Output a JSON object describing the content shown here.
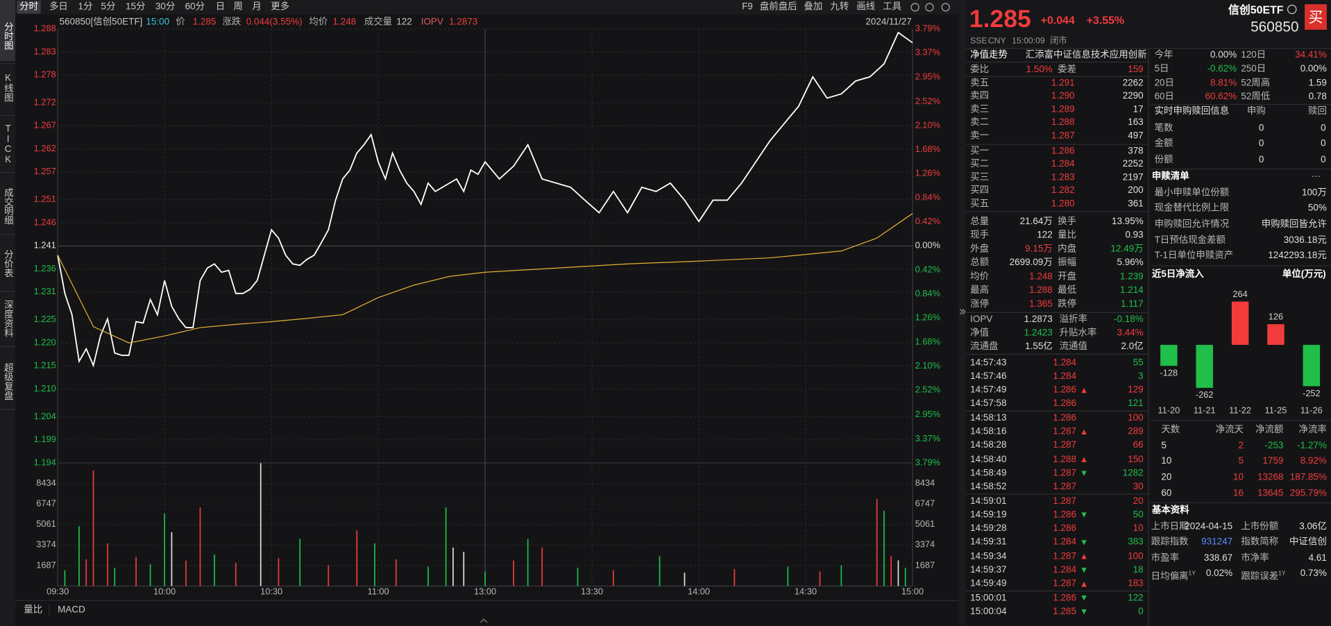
{
  "left_tabs": [
    "分时图",
    "K线图",
    "TICK",
    "成交明细",
    "分价表",
    "深度资料",
    "超级复盘"
  ],
  "toolbar": {
    "periods": [
      "分时",
      "多日",
      "1分",
      "5分",
      "15分",
      "30分",
      "60分",
      "日",
      "周",
      "月",
      "更多"
    ],
    "tools": [
      "F9",
      "盘前盘后",
      "叠加",
      "九转",
      "画线",
      "工具"
    ]
  },
  "info": {
    "code": "560850[信创50ETF]",
    "time": "15:00",
    "price_label": "价",
    "price": "1.285",
    "change_label": "涨跌",
    "change": "0.044(3.55%)",
    "avg_label": "均价",
    "avg": "1.248",
    "vol_label": "成交量",
    "vol": "122",
    "iopv_label": "IOPV",
    "iopv": "1.2873",
    "date": "2024/11/27"
  },
  "bottom_tabs": [
    "量比",
    "MACD"
  ],
  "chart_data": [
    {
      "type": "line",
      "grid": true,
      "xlim": [
        0,
        240
      ],
      "ylim": [
        1.194,
        1.288
      ],
      "y2lim": [
        -3.79,
        3.79
      ],
      "xticks": [
        {
          "value": 0,
          "label": "09:30"
        },
        {
          "value": 30,
          "label": "10:00"
        },
        {
          "value": 60,
          "label": "10:30"
        },
        {
          "value": 90,
          "label": "11:00"
        },
        {
          "value": 120,
          "label": "13:00"
        },
        {
          "value": 150,
          "label": "13:30"
        },
        {
          "value": 180,
          "label": "14:00"
        },
        {
          "value": 210,
          "label": "14:30"
        },
        {
          "value": 240,
          "label": "15:00"
        }
      ],
      "yticks": [
        1.288,
        1.283,
        1.278,
        1.272,
        1.267,
        1.262,
        1.257,
        1.251,
        1.246,
        1.241,
        1.236,
        1.231,
        1.225,
        {
          "value": 1.22,
          "label": "1.220"
        },
        1.215,
        {
          "value": 1.21,
          "label": "1.210"
        },
        1.204,
        1.199,
        1.194
      ],
      "y2ticks": [
        {
          "value": 3.79,
          "label": "3.79%"
        },
        {
          "value": 3.37,
          "label": "3.37%"
        },
        {
          "value": 2.95,
          "label": "2.95%"
        },
        {
          "value": 2.52,
          "label": "2.52%"
        },
        {
          "value": 2.1,
          "label": "2.10%"
        },
        {
          "value": 1.68,
          "label": "1.68%"
        },
        {
          "value": 1.26,
          "label": "1.26%"
        },
        {
          "value": 0.84,
          "label": "0.84%"
        },
        {
          "value": 0.42,
          "label": "0.42%"
        },
        {
          "value": 0,
          "label": "0.00%"
        },
        {
          "value": -0.42,
          "label": "0.42%"
        },
        {
          "value": -0.84,
          "label": "0.84%"
        },
        {
          "value": -1.26,
          "label": "1.26%"
        },
        {
          "value": -1.68,
          "label": "1.68%"
        },
        {
          "value": -2.1,
          "label": "2.10%"
        },
        {
          "value": -2.52,
          "label": "2.52%"
        },
        {
          "value": -2.95,
          "label": "2.95%"
        },
        {
          "value": -3.37,
          "label": "3.37%"
        },
        {
          "value": -3.79,
          "label": "3.79%"
        }
      ],
      "series": [
        {
          "color": "#ffffff",
          "x": [
            0,
            2,
            4,
            6,
            8,
            10,
            12,
            14,
            16,
            18,
            20,
            22,
            24,
            26,
            28,
            30,
            32,
            34,
            36,
            38,
            40,
            42,
            44,
            46,
            48,
            50,
            52,
            54,
            56,
            58,
            60,
            62,
            64,
            66,
            68,
            70,
            72,
            74,
            76,
            78,
            80,
            82,
            84,
            86,
            88,
            90,
            92,
            94,
            96,
            98,
            100,
            102,
            104,
            106,
            108,
            110,
            112,
            114,
            116,
            118,
            120,
            124,
            128,
            132,
            136,
            140,
            144,
            148,
            152,
            156,
            160,
            164,
            168,
            172,
            176,
            180,
            184,
            188,
            192,
            196,
            200,
            204,
            208,
            212,
            216,
            220,
            224,
            228,
            232,
            236,
            240
          ],
          "values": [
            1.239,
            1.2307,
            1.2261,
            1.216,
            1.2187,
            1.2151,
            1.2215,
            1.2252,
            1.2178,
            1.2173,
            1.2173,
            1.2246,
            1.2243,
            1.2294,
            1.2261,
            1.2335,
            1.2279,
            1.2252,
            1.2233,
            1.2233,
            1.2335,
            1.2362,
            1.2371,
            1.2353,
            1.2357,
            1.2307,
            1.2307,
            1.2316,
            1.2335,
            1.239,
            1.2445,
            1.2427,
            1.239,
            1.2371,
            1.2368,
            1.2381,
            1.239,
            1.2417,
            1.2445,
            1.2509,
            1.2555,
            1.2574,
            1.2611,
            1.2629,
            1.2651,
            1.2592,
            1.2555,
            1.2611,
            1.2574,
            1.2546,
            1.2528,
            1.25,
            1.2546,
            1.2528,
            1.2537,
            1.2546,
            1.2555,
            1.2528,
            1.2574,
            1.2565,
            1.2592,
            1.2555,
            1.2583,
            1.2629,
            1.2555,
            1.2546,
            1.2537,
            1.2509,
            1.2482,
            1.2528,
            1.2482,
            1.2537,
            1.2528,
            1.2546,
            1.2509,
            1.2463,
            1.2509,
            1.2509,
            1.2546,
            1.2592,
            1.2638,
            1.2675,
            1.2712,
            1.2776,
            1.273,
            1.2739,
            1.2767,
            1.2776,
            1.2804,
            1.2872,
            1.285
          ]
        },
        {
          "color": "#e8b234",
          "x": [
            0,
            10,
            20,
            30,
            40,
            50,
            60,
            70,
            80,
            90,
            100,
            110,
            120,
            140,
            160,
            180,
            200,
            220,
            230,
            240
          ],
          "values": [
            1.239,
            1.2235,
            1.22,
            1.2215,
            1.2233,
            1.224,
            1.2246,
            1.2253,
            1.2261,
            1.2298,
            1.2325,
            1.2344,
            1.2353,
            1.2362,
            1.2371,
            1.2377,
            1.2384,
            1.2399,
            1.2427,
            1.248
          ]
        }
      ]
    },
    {
      "type": "bar",
      "xlim": [
        0,
        240
      ],
      "ylim": [
        0,
        10121
      ],
      "yticks": [
        1687,
        3374,
        5061,
        6747,
        8434
      ],
      "x": [
        2,
        6,
        8,
        10,
        14,
        16,
        22,
        26,
        30,
        32,
        36,
        40,
        44,
        50,
        57,
        62,
        68,
        76,
        84,
        89,
        95,
        104,
        109,
        111,
        114,
        120,
        128,
        132,
        136,
        146,
        156,
        169,
        176,
        190,
        205,
        214,
        220,
        230,
        232,
        234,
        236,
        238
      ],
      "values": [
        1300,
        4920,
        2200,
        9490,
        3515,
        1500,
        2400,
        1800,
        5975,
        4430,
        2100,
        6470,
        2600,
        1900,
        10100,
        2300,
        3870,
        1700,
        4570,
        3515,
        2200,
        1600,
        6470,
        3160,
        2810,
        1200,
        2100,
        3870,
        3160,
        1500,
        1300,
        2460,
        1100,
        1400,
        1600,
        1200,
        1700,
        7170,
        6190,
        2460,
        2110,
        1500
      ],
      "colors": [
        "#1fbf4a",
        "#1fbf4a",
        "#f23c3c",
        "#f23c3c",
        "#f23c3c",
        "#1fbf4a",
        "#f23c3c",
        "#1fbf4a",
        "#1fbf4a",
        "#e0e0e0",
        "#f23c3c",
        "#f23c3c",
        "#1fbf4a",
        "#f23c3c",
        "#e0e0e0",
        "#f23c3c",
        "#1fbf4a",
        "#f23c3c",
        "#f23c3c",
        "#1fbf4a",
        "#f23c3c",
        "#1fbf4a",
        "#1fbf4a",
        "#e0e0e0",
        "#e0e0e0",
        "#1fbf4a",
        "#f23c3c",
        "#1fbf4a",
        "#f23c3c",
        "#1fbf4a",
        "#f23c3c",
        "#1fbf4a",
        "#e0e0e0",
        "#f23c3c",
        "#1fbf4a",
        "#f23c3c",
        "#1fbf4a",
        "#f23c3c",
        "#1fbf4a",
        "#f23c3c",
        "#e0e0e0",
        "#1fbf4a"
      ]
    },
    {
      "type": "bar",
      "title": "近5日净流入",
      "unit": "单位(万元)",
      "categories": [
        "11-20",
        "11-21",
        "11-22",
        "11-25",
        "11-26"
      ],
      "values": [
        -128,
        -262,
        264,
        126,
        -252
      ],
      "ylim": [
        -350,
        350
      ],
      "positive_color": "#f23c3c",
      "negative_color": "#1fbf4a"
    }
  ],
  "quote": {
    "price": "1.285",
    "change": "+0.044",
    "change_pct": "+3.55%",
    "name": "信创50ETF",
    "code": "560850",
    "buy": "买",
    "meta": [
      "SSE",
      "CNY",
      "15:00:09",
      "闭市"
    ],
    "nav_tab": "净值走势",
    "fund_name": "汇添富中证信息技术应用创新"
  },
  "ratio": {
    "cells": [
      "委比",
      "1.50%",
      "委差",
      "159"
    ],
    "colors": [
      "#f23c3c",
      "#f23c3c"
    ]
  },
  "order_book": {
    "price_color": "#f23c3c",
    "volume_color": "#e0e0e0",
    "asks": [
      [
        "卖五",
        "1.291",
        "2262"
      ],
      [
        "卖四",
        "1.290",
        "2290"
      ],
      [
        "卖三",
        "1.289",
        "17"
      ],
      [
        "卖二",
        "1.288",
        "163"
      ],
      [
        "卖一",
        "1.287",
        "497"
      ]
    ],
    "bids": [
      [
        "买一",
        "1.286",
        "378"
      ],
      [
        "买二",
        "1.284",
        "2252"
      ],
      [
        "买三",
        "1.283",
        "2197"
      ],
      [
        "买四",
        "1.282",
        "200"
      ],
      [
        "买五",
        "1.280",
        "361"
      ]
    ]
  },
  "stats": {
    "rows": [
      [
        "总量",
        "21.64万",
        "换手",
        "13.95%"
      ],
      [
        "现手",
        "122",
        "量比",
        "0.93"
      ],
      [
        "外盘",
        "9.15万",
        "内盘",
        "12.49万"
      ],
      [
        "总额",
        "2699.09万",
        "振幅",
        "5.96%"
      ],
      [
        "均价",
        "1.248",
        "开盘",
        "1.239"
      ],
      [
        "最高",
        "1.288",
        "最低",
        "1.214"
      ],
      [
        "涨停",
        "1.365",
        "跌停",
        "1.117"
      ]
    ],
    "colors": [
      [
        "#e0e0e0",
        "#e0e0e0"
      ],
      [
        "#e0e0e0",
        "#e0e0e0"
      ],
      [
        "#f23c3c",
        "#1fbf4a"
      ],
      [
        "#e0e0e0",
        "#e0e0e0"
      ],
      [
        "#f23c3c",
        "#1fbf4a"
      ],
      [
        "#f23c3c",
        "#1fbf4a"
      ],
      [
        "#f23c3c",
        "#1fbf4a"
      ]
    ]
  },
  "stats2": {
    "rows": [
      [
        "IOPV",
        "1.2873",
        "溢折率",
        "-0.18%"
      ],
      [
        "净值",
        "1.2423",
        "升贴水率",
        "3.44%"
      ],
      [
        "流通盘",
        "1.55亿",
        "流通值",
        "2.0亿"
      ]
    ],
    "colors": [
      [
        "#e0e0e0",
        "#1fbf4a"
      ],
      [
        "#1fbf4a",
        "#f23c3c"
      ],
      [
        "#e0e0e0",
        "#e0e0e0"
      ]
    ]
  },
  "trades": {
    "price_color": "#f23c3c",
    "rows": [
      {
        "time": "14:57:43",
        "price": "1.284",
        "volume": "55",
        "color": "#1fbf4a"
      },
      {
        "time": "14:57:46",
        "price": "1.284",
        "volume": "3",
        "color": "#1fbf4a"
      },
      {
        "time": "14:57:49",
        "price": "1.286",
        "volume": "129",
        "color": "#f23c3c",
        "arrow": "up"
      },
      {
        "time": "14:57:58",
        "price": "1.286",
        "volume": "121",
        "color": "#1fbf4a"
      },
      {
        "time": "14:58:13",
        "price": "1.286",
        "volume": "100",
        "color": "#f23c3c"
      },
      {
        "time": "14:58:16",
        "price": "1.287",
        "volume": "289",
        "color": "#f23c3c",
        "arrow": "up"
      },
      {
        "time": "14:58:28",
        "price": "1.287",
        "volume": "66",
        "color": "#f23c3c"
      },
      {
        "time": "14:58:40",
        "price": "1.288",
        "volume": "150",
        "color": "#f23c3c",
        "arrow": "up"
      },
      {
        "time": "14:58:49",
        "price": "1.287",
        "volume": "1282",
        "color": "#1fbf4a",
        "arrow": "down"
      },
      {
        "time": "14:58:52",
        "price": "1.287",
        "volume": "30",
        "color": "#f23c3c"
      },
      {
        "time": "14:59:01",
        "price": "1.287",
        "volume": "20",
        "color": "#f23c3c"
      },
      {
        "time": "14:59:19",
        "price": "1.286",
        "volume": "50",
        "color": "#1fbf4a",
        "arrow": "down"
      },
      {
        "time": "14:59:28",
        "price": "1.286",
        "volume": "10",
        "color": "#f23c3c"
      },
      {
        "time": "14:59:31",
        "price": "1.284",
        "volume": "383",
        "color": "#1fbf4a",
        "arrow": "down"
      },
      {
        "time": "14:59:34",
        "price": "1.287",
        "volume": "100",
        "color": "#f23c3c",
        "arrow": "up"
      },
      {
        "time": "14:59:37",
        "price": "1.284",
        "volume": "18",
        "color": "#1fbf4a",
        "arrow": "down"
      },
      {
        "time": "14:59:49",
        "price": "1.287",
        "volume": "183",
        "color": "#f23c3c",
        "arrow": "up"
      },
      {
        "time": "15:00:01",
        "price": "1.286",
        "volume": "122",
        "color": "#1fbf4a",
        "arrow": "down"
      },
      {
        "time": "15:00:04",
        "price": "1.285",
        "volume": "0",
        "color": "#1fbf4a",
        "arrow": "down"
      }
    ]
  },
  "periods": {
    "rows": [
      [
        "今年",
        "0.00%",
        "120日",
        "34.41%"
      ],
      [
        "5日",
        "-0.62%",
        "250日",
        "0.00%"
      ],
      [
        "20日",
        "8.81%",
        "52周高",
        "1.59"
      ],
      [
        "60日",
        "60.62%",
        "52周低",
        "0.78"
      ]
    ],
    "colors": [
      [
        "#e0e0e0",
        "#f23c3c"
      ],
      [
        "#1fbf4a",
        "#e0e0e0"
      ],
      [
        "#f23c3c",
        "#e0e0e0"
      ],
      [
        "#f23c3c",
        "#e0e0e0"
      ]
    ]
  },
  "creation": {
    "title": "实时申购赎回信息",
    "headers": [
      "申购",
      "赎回"
    ],
    "rows": [
      [
        "笔数",
        "0",
        "0"
      ],
      [
        "金额",
        "0",
        "0"
      ],
      [
        "份额",
        "0",
        "0"
      ]
    ]
  },
  "list": {
    "title": "申赎清单",
    "more": "···",
    "rows": [
      [
        "最小申赎单位份额",
        "100万"
      ],
      [
        "现金替代比例上限",
        "50%"
      ],
      [
        "申购赎回允许情况",
        "申购赎回皆允许"
      ],
      [
        "T日预估现金差额",
        "3036.18元"
      ],
      [
        "T-1日单位申赎资产",
        "1242293.18元"
      ]
    ]
  },
  "flow": {
    "headers": [
      "天数",
      "净流天",
      "净流额",
      "净流率"
    ],
    "rows": [
      [
        "5",
        "2",
        "-253",
        "-1.27%"
      ],
      [
        "10",
        "5",
        "1759",
        "8.92%"
      ],
      [
        "20",
        "10",
        "13268",
        "187.85%"
      ],
      [
        "60",
        "16",
        "13645",
        "295.79%"
      ]
    ],
    "colors": [
      [
        "#f23c3c",
        "#1fbf4a",
        "#1fbf4a"
      ],
      [
        "#f23c3c",
        "#f23c3c",
        "#f23c3c"
      ],
      [
        "#f23c3c",
        "#f23c3c",
        "#f23c3c"
      ],
      [
        "#f23c3c",
        "#f23c3c",
        "#f23c3c"
      ]
    ]
  },
  "basic": {
    "title": "基本资料",
    "rows": [
      [
        {
          "text": "上市日期"
        },
        {
          "text": "2024-04-15"
        },
        {
          "text": "上市份额"
        },
        {
          "text": "3.06亿"
        }
      ],
      [
        {
          "text": "跟踪指数"
        },
        {
          "text": "931247"
        },
        {
          "text": "指数简称"
        },
        {
          "text": "中证信创"
        }
      ],
      [
        {
          "text": "市盈率"
        },
        {
          "text": "338.67"
        },
        {
          "text": "市净率"
        },
        {
          "text": "4.61"
        }
      ],
      [
        {
          "text": "日均偏离",
          "sup": "1Y"
        },
        {
          "text": "0.02%"
        },
        {
          "text": "跟踪误差",
          "sup": "1Y"
        },
        {
          "text": "0.73%"
        }
      ]
    ],
    "colors": [
      [
        "#e0e0e0",
        "#e0e0e0"
      ],
      [
        "#5b8cff",
        "#e0e0e0"
      ],
      [
        "#e0e0e0",
        "#e0e0e0"
      ],
      [
        "#e0e0e0",
        "#e0e0e0"
      ]
    ]
  }
}
